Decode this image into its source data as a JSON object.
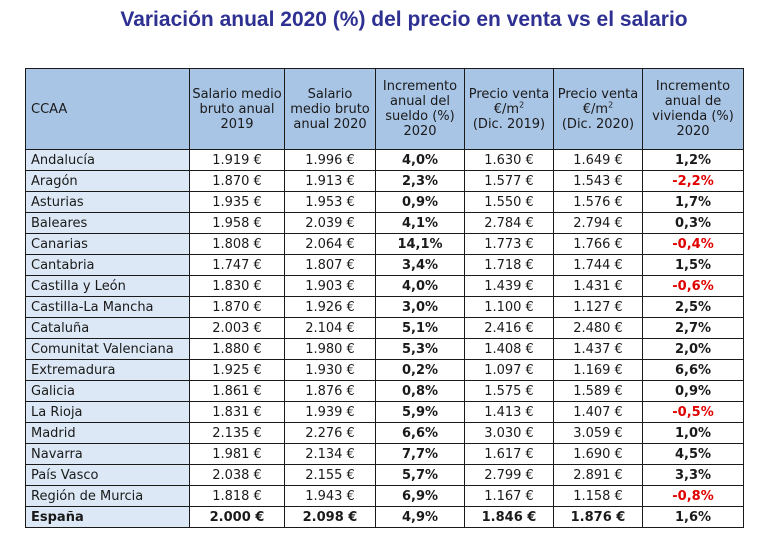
{
  "title": "Variación anual 2020 (%) del precio en venta vs el salario",
  "headers": {
    "ccaa": "CCAA",
    "salario2019": "Salario medio bruto anual 2019",
    "salario2020": "Salario medio bruto anual 2020",
    "incremento_sueldo": "Incremento anual del sueldo (%) 2020",
    "precio2019_a": "Precio venta €/m",
    "precio2019_b": "(Dic. 2019)",
    "precio2020_a": "Precio venta €/m",
    "precio2020_b": "(Dic. 2020)",
    "sup": "2",
    "incremento_vivienda": "Incremento anual de vivienda (%) 2020"
  },
  "rows": [
    {
      "region": "Andalucía",
      "s2019": "1.919 €",
      "s2020": "1.996 €",
      "inc_sueldo": "4,0%",
      "p2019": "1.630 €",
      "p2020": "1.649 €",
      "inc_viv": "1,2%"
    },
    {
      "region": "Aragón",
      "s2019": "1.870 €",
      "s2020": "1.913 €",
      "inc_sueldo": "2,3%",
      "p2019": "1.577 €",
      "p2020": "1.543 €",
      "inc_viv": "-2,2%"
    },
    {
      "region": "Asturias",
      "s2019": "1.935 €",
      "s2020": "1.953 €",
      "inc_sueldo": "0,9%",
      "p2019": "1.550 €",
      "p2020": "1.576 €",
      "inc_viv": "1,7%"
    },
    {
      "region": "Baleares",
      "s2019": "1.958 €",
      "s2020": "2.039 €",
      "inc_sueldo": "4,1%",
      "p2019": "2.784 €",
      "p2020": "2.794 €",
      "inc_viv": "0,3%"
    },
    {
      "region": "Canarias",
      "s2019": "1.808 €",
      "s2020": "2.064 €",
      "inc_sueldo": "14,1%",
      "p2019": "1.773 €",
      "p2020": "1.766 €",
      "inc_viv": "-0,4%"
    },
    {
      "region": "Cantabria",
      "s2019": "1.747 €",
      "s2020": "1.807 €",
      "inc_sueldo": "3,4%",
      "p2019": "1.718 €",
      "p2020": "1.744 €",
      "inc_viv": "1,5%"
    },
    {
      "region": "Castilla y León",
      "s2019": "1.830 €",
      "s2020": "1.903 €",
      "inc_sueldo": "4,0%",
      "p2019": "1.439 €",
      "p2020": "1.431 €",
      "inc_viv": "-0,6%"
    },
    {
      "region": "Castilla-La Mancha",
      "s2019": "1.870 €",
      "s2020": "1.926 €",
      "inc_sueldo": "3,0%",
      "p2019": "1.100 €",
      "p2020": "1.127 €",
      "inc_viv": "2,5%"
    },
    {
      "region": "Cataluña",
      "s2019": "2.003 €",
      "s2020": "2.104 €",
      "inc_sueldo": "5,1%",
      "p2019": "2.416 €",
      "p2020": "2.480 €",
      "inc_viv": "2,7%"
    },
    {
      "region": "Comunitat Valenciana",
      "s2019": "1.880 €",
      "s2020": "1.980 €",
      "inc_sueldo": "5,3%",
      "p2019": "1.408 €",
      "p2020": "1.437 €",
      "inc_viv": "2,0%"
    },
    {
      "region": "Extremadura",
      "s2019": "1.925 €",
      "s2020": "1.930 €",
      "inc_sueldo": "0,2%",
      "p2019": "1.097 €",
      "p2020": "1.169 €",
      "inc_viv": "6,6%"
    },
    {
      "region": "Galicia",
      "s2019": "1.861 €",
      "s2020": "1.876 €",
      "inc_sueldo": "0,8%",
      "p2019": "1.575 €",
      "p2020": "1.589 €",
      "inc_viv": "0,9%"
    },
    {
      "region": "La Rioja",
      "s2019": "1.831 €",
      "s2020": "1.939 €",
      "inc_sueldo": "5,9%",
      "p2019": "1.413 €",
      "p2020": "1.407 €",
      "inc_viv": "-0,5%"
    },
    {
      "region": "Madrid",
      "s2019": "2.135 €",
      "s2020": "2.276 €",
      "inc_sueldo": "6,6%",
      "p2019": "3.030 €",
      "p2020": "3.059 €",
      "inc_viv": "1,0%"
    },
    {
      "region": "Navarra",
      "s2019": "1.981 €",
      "s2020": "2.134 €",
      "inc_sueldo": "7,7%",
      "p2019": "1.617 €",
      "p2020": "1.690 €",
      "inc_viv": "4,5%"
    },
    {
      "region": "País Vasco",
      "s2019": "2.038 €",
      "s2020": "2.155 €",
      "inc_sueldo": "5,7%",
      "p2019": "2.799 €",
      "p2020": "2.891 €",
      "inc_viv": "3,3%"
    },
    {
      "region": "Región de Murcia",
      "s2019": "1.818 €",
      "s2020": "1.943 €",
      "inc_sueldo": "6,9%",
      "p2019": "1.167 €",
      "p2020": "1.158 €",
      "inc_viv": "-0,8%"
    }
  ],
  "total": {
    "region": "España",
    "s2019": "2.000 €",
    "s2020": "2.098 €",
    "inc_sueldo": "4,9%",
    "p2019": "1.846 €",
    "p2020": "1.876 €",
    "inc_viv": "1,6%"
  },
  "colors": {
    "title": "#2e3192",
    "header_bg": "#a9c5e6",
    "region_bg": "#dce8f5",
    "negative": "#e00000"
  }
}
